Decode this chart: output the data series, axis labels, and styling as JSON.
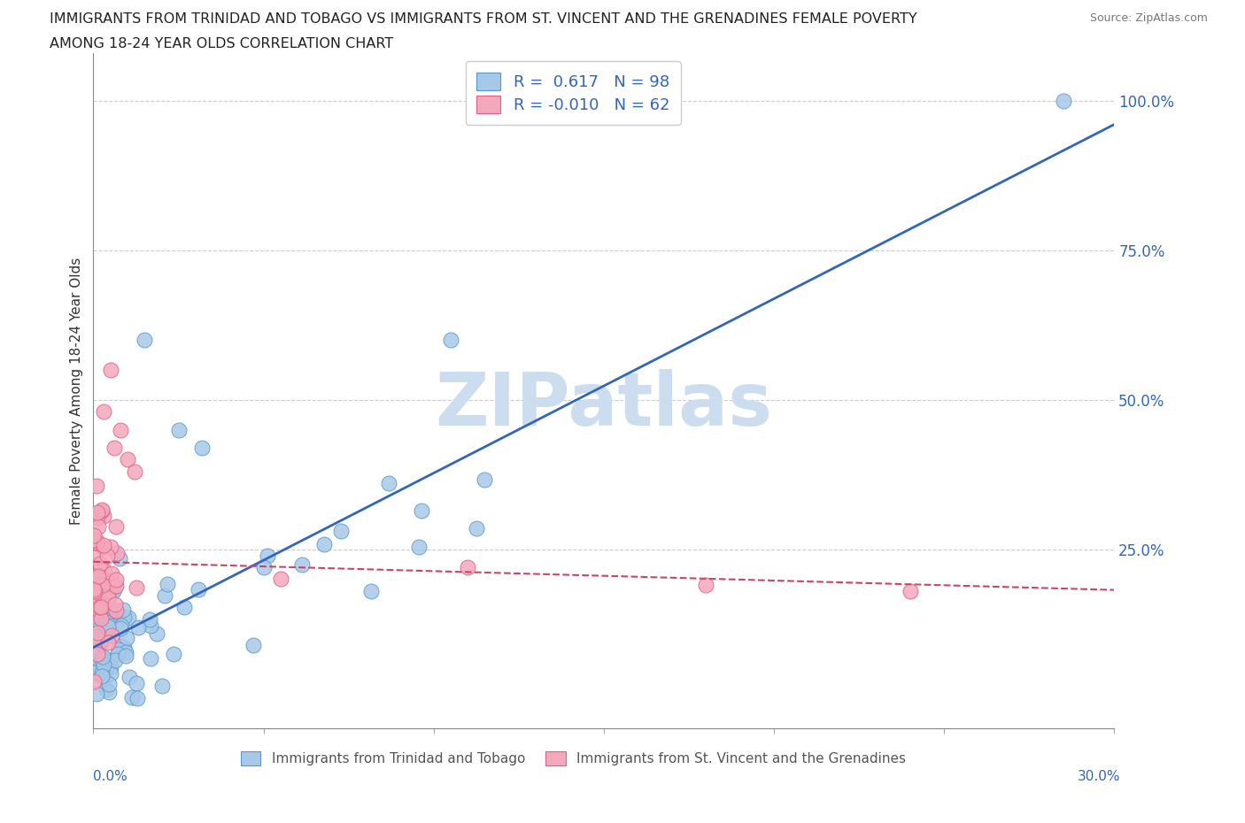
{
  "title_line1": "IMMIGRANTS FROM TRINIDAD AND TOBAGO VS IMMIGRANTS FROM ST. VINCENT AND THE GRENADINES FEMALE POVERTY",
  "title_line2": "AMONG 18-24 YEAR OLDS CORRELATION CHART",
  "source_text": "Source: ZipAtlas.com",
  "ylabel": "Female Poverty Among 18-24 Year Olds",
  "y_tick_labels": [
    "100.0%",
    "75.0%",
    "50.0%",
    "25.0%"
  ],
  "y_tick_vals": [
    100,
    75,
    50,
    25
  ],
  "xmin": 0,
  "xmax": 30,
  "ymin": -5,
  "ymax": 108,
  "blue_color": "#a8c8e8",
  "pink_color": "#f4a8bc",
  "blue_edge_color": "#5599cc",
  "pink_edge_color": "#e06080",
  "blue_line_color": "#3366bb",
  "pink_line_color": "#cc4466",
  "watermark": "ZIPatlas",
  "watermark_color": "#ccddf0",
  "blue_r": 0.617,
  "pink_r": -0.01,
  "blue_n": 98,
  "pink_n": 62,
  "legend_label_color": "#3366bb",
  "axis_label_color": "#3366bb",
  "grid_color": "#cccccc"
}
